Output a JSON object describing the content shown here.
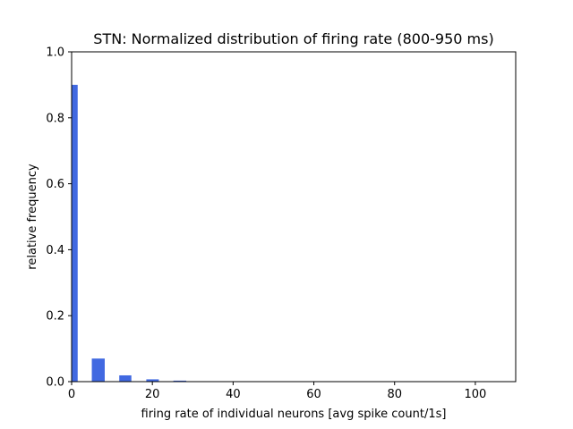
{
  "chart_data": {
    "type": "bar",
    "title": "STN: Normalized distribution of firing rate (800-950 ms)",
    "xlabel": "firing rate of individual neurons [avg spike count/1s]",
    "ylabel": "relative frequency",
    "xlim": [
      0,
      110
    ],
    "ylim": [
      0,
      1.0
    ],
    "x_ticks": [
      0,
      20,
      40,
      60,
      80,
      100
    ],
    "y_ticks": [
      0.0,
      0.2,
      0.4,
      0.6,
      0.8,
      1.0
    ],
    "x_tick_labels": [
      "0",
      "20",
      "40",
      "60",
      "80",
      "100"
    ],
    "y_tick_labels": [
      "0.0",
      "0.2",
      "0.4",
      "0.6",
      "0.8",
      "1.0"
    ],
    "bar_color": "#4169e1",
    "grid": false,
    "bars": [
      {
        "x_start": 0.0,
        "x_end": 1.5,
        "value": 0.9
      },
      {
        "x_start": 5.0,
        "x_end": 8.2,
        "value": 0.07
      },
      {
        "x_start": 11.8,
        "x_end": 14.8,
        "value": 0.019
      },
      {
        "x_start": 18.5,
        "x_end": 21.6,
        "value": 0.007
      },
      {
        "x_start": 25.2,
        "x_end": 28.4,
        "value": 0.003
      }
    ]
  }
}
